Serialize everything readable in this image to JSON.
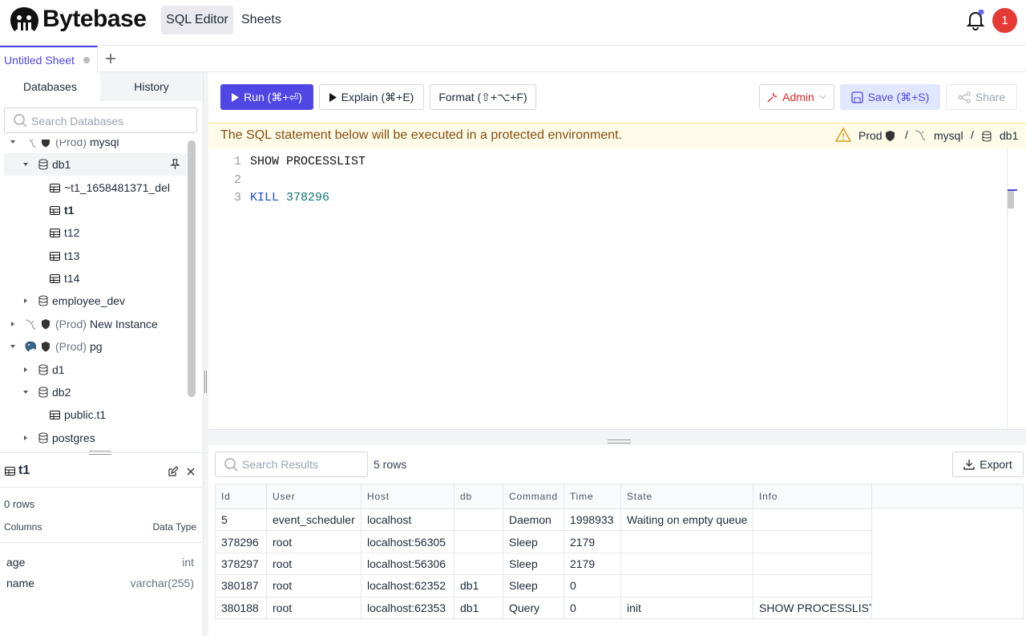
{
  "header": {
    "logo": "Bytebase",
    "nav": [
      "SQL Editor",
      "Sheets"
    ],
    "avatar": "1"
  },
  "tabs": {
    "sheets": [
      "Untitled Sheet"
    ]
  },
  "sidebar": {
    "tabs": [
      "Databases",
      "History"
    ],
    "search_placeholder": "Search Databases",
    "tree": [
      {
        "prefix": "(Prod)",
        "label": "mysql",
        "children": [
          {
            "label": "db1",
            "active": true,
            "children": [
              {
                "label": "~t1_1658481371_del"
              },
              {
                "label": "t1",
                "selected": true
              },
              {
                "label": "t12"
              },
              {
                "label": "t13"
              },
              {
                "label": "t14"
              }
            ]
          },
          {
            "label": "employee_dev"
          }
        ]
      },
      {
        "prefix": "(Prod)",
        "label": "New Instance"
      },
      {
        "prefix": "(Prod)",
        "label": "pg",
        "children": [
          {
            "label": "d1"
          },
          {
            "label": "db2",
            "children": [
              {
                "label": "public.t1"
              }
            ]
          },
          {
            "label": "postgres"
          }
        ]
      }
    ],
    "detail": {
      "title": "t1",
      "rows": "0 rows",
      "columns_label": "Columns",
      "type_label": "Data Type",
      "columns": [
        [
          "age",
          "int"
        ],
        [
          "name",
          "varchar(255)"
        ]
      ]
    }
  },
  "toolbar": {
    "run": "Run (⌘+⏎)",
    "explain": "Explain (⌘+E)",
    "format": "Format (⇧+⌥+F)",
    "admin": "Admin",
    "save": "Save (⌘+S)",
    "share": "Share"
  },
  "banner": {
    "message": "The SQL statement below will be executed in a protected environment.",
    "environment": "Prod",
    "instance": "mysql",
    "database": "db1"
  },
  "editor": {
    "lines": [
      {
        "number": "1",
        "tokens": [
          {
            "text": "SHOW PROCESSLIST",
            "kind": "plain"
          }
        ]
      },
      {
        "number": "2",
        "tokens": []
      },
      {
        "number": "3",
        "tokens": [
          {
            "text": "KILL",
            "kind": "keyword"
          },
          {
            "text": "378296",
            "kind": "number"
          }
        ]
      }
    ]
  },
  "results": {
    "search_placeholder": "Search Results",
    "count": "5 rows",
    "export": "Export",
    "columns": [
      "Id",
      "User",
      "Host",
      "db",
      "Command",
      "Time",
      "State",
      "Info"
    ],
    "rows": [
      [
        5,
        "event_scheduler",
        "localhost",
        null,
        "Daemon",
        1998933,
        "Waiting on empty queue",
        null
      ],
      [
        378296,
        "root",
        "localhost:56305",
        null,
        "Sleep",
        2179,
        null,
        null
      ],
      [
        378297,
        "root",
        "localhost:56306",
        null,
        "Sleep",
        2179,
        null,
        null
      ],
      [
        380187,
        "root",
        "localhost:62352",
        "db1",
        "Sleep",
        0,
        null,
        null
      ],
      [
        380188,
        "root",
        "localhost:62353",
        "db1",
        "Query",
        0,
        "init",
        "SHOW PROCESSLIST"
      ]
    ]
  }
}
